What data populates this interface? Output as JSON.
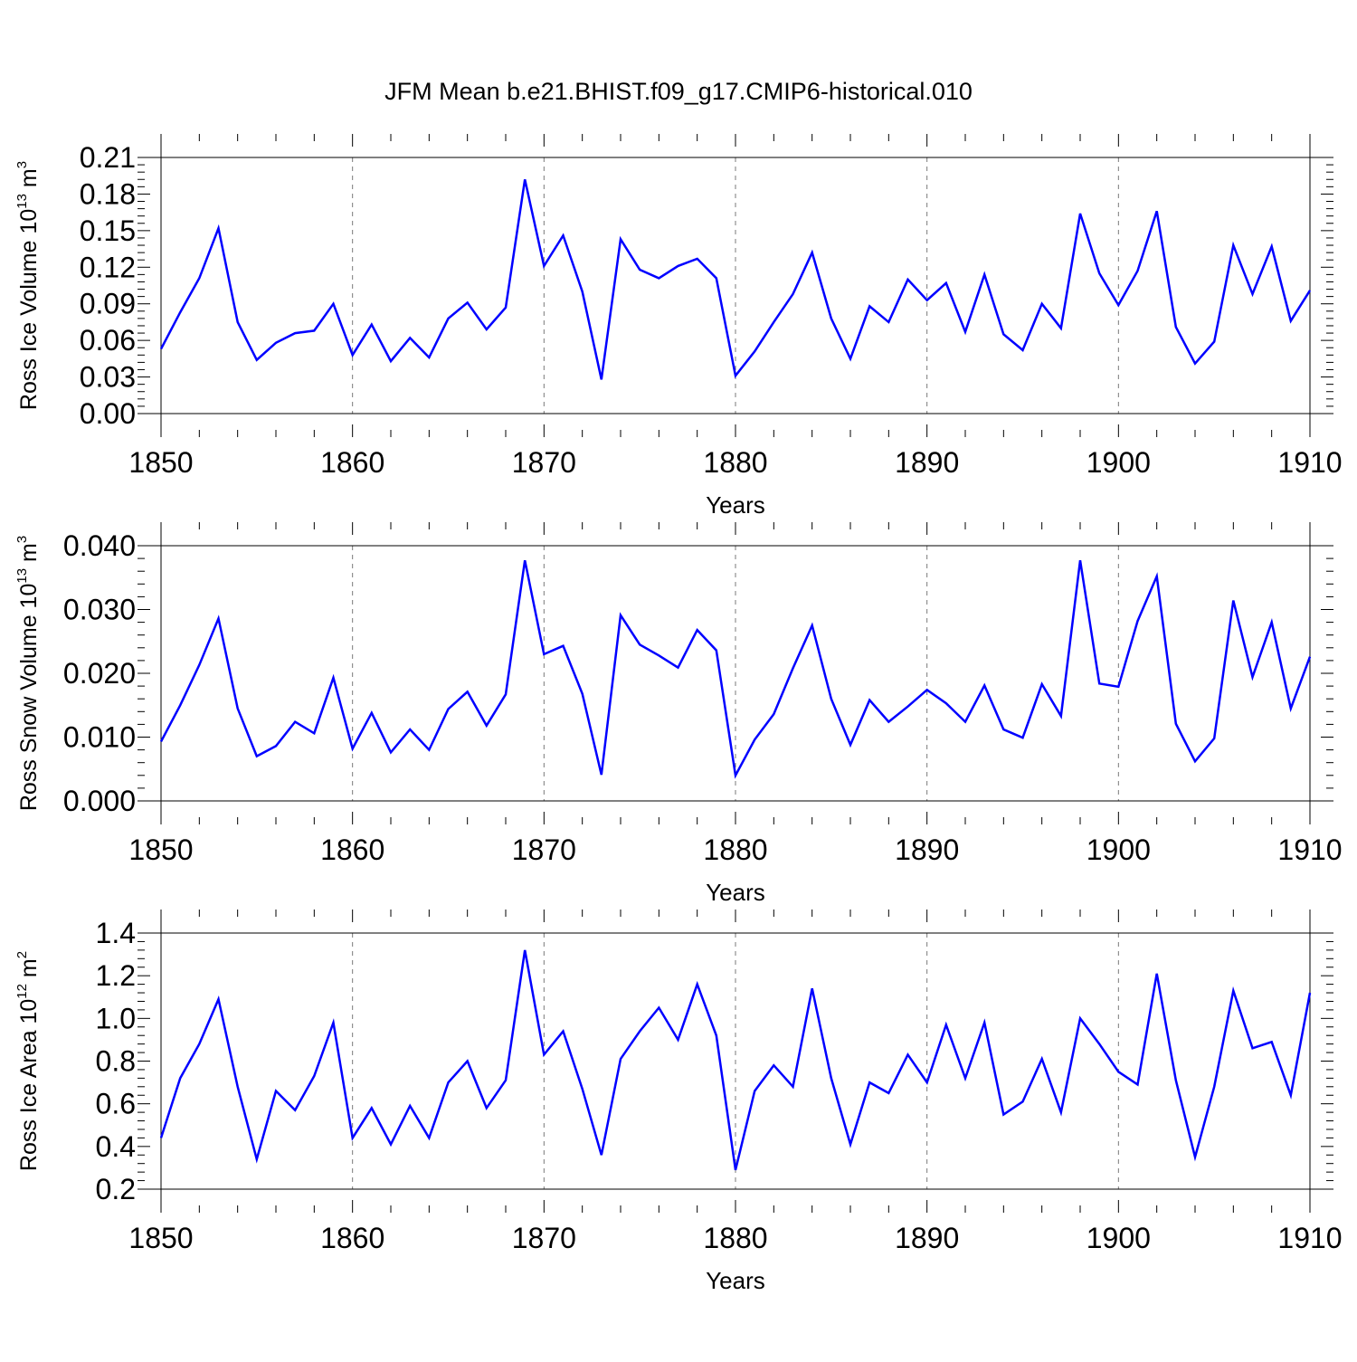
{
  "chart_data": {
    "title": "JFM Mean b.e21.BHIST.f09_g17.CMIP6-historical.010",
    "panels": [
      {
        "type": "line",
        "ylabel": {
          "text": "Ross Ice Volume 10",
          "exponent": "13",
          "unit": "m",
          "unit_exponent": "3"
        },
        "xlabel": "Years",
        "xlim": [
          1850,
          1910
        ],
        "ylim": [
          0.0,
          0.21
        ],
        "xticks": [
          "1850",
          "1860",
          "1870",
          "1880",
          "1890",
          "1900",
          "1910"
        ],
        "yticks": [
          "0.00",
          "0.03",
          "0.06",
          "0.09",
          "0.12",
          "0.15",
          "0.18",
          "0.21"
        ],
        "grid": "vertical dashed at x major ticks",
        "series": [
          {
            "name": "Ross Ice Volume",
            "color": "#0000ff",
            "x": [
              1850,
              1851,
              1852,
              1853,
              1854,
              1855,
              1856,
              1857,
              1858,
              1859,
              1860,
              1861,
              1862,
              1863,
              1864,
              1865,
              1866,
              1867,
              1868,
              1869,
              1870,
              1871,
              1872,
              1873,
              1874,
              1875,
              1876,
              1877,
              1878,
              1879,
              1880,
              1881,
              1882,
              1883,
              1884,
              1885,
              1886,
              1887,
              1888,
              1889,
              1890,
              1891,
              1892,
              1893,
              1894,
              1895,
              1896,
              1897,
              1898,
              1899,
              1900,
              1901,
              1902,
              1903,
              1904,
              1905,
              1906,
              1907,
              1908,
              1909,
              1910
            ],
            "values": [
              0.053,
              0.083,
              0.111,
              0.152,
              0.075,
              0.044,
              0.058,
              0.066,
              0.068,
              0.09,
              0.048,
              0.073,
              0.043,
              0.062,
              0.046,
              0.078,
              0.091,
              0.069,
              0.087,
              0.192,
              0.121,
              0.146,
              0.1,
              0.028,
              0.143,
              0.118,
              0.111,
              0.121,
              0.127,
              0.111,
              0.031,
              0.051,
              0.075,
              0.098,
              0.132,
              0.078,
              0.045,
              0.088,
              0.075,
              0.11,
              0.093,
              0.107,
              0.067,
              0.114,
              0.065,
              0.052,
              0.09,
              0.07,
              0.164,
              0.115,
              0.089,
              0.117,
              0.166,
              0.071,
              0.041,
              0.059,
              0.138,
              0.098,
              0.137,
              0.076,
              0.101
            ]
          }
        ]
      },
      {
        "type": "line",
        "ylabel": {
          "text": "Ross Snow Volume 10",
          "exponent": "13",
          "unit": "m",
          "unit_exponent": "3"
        },
        "xlabel": "Years",
        "xlim": [
          1850,
          1910
        ],
        "ylim": [
          0.0,
          0.04
        ],
        "xticks": [
          "1850",
          "1860",
          "1870",
          "1880",
          "1890",
          "1900",
          "1910"
        ],
        "yticks": [
          "0.000",
          "0.010",
          "0.020",
          "0.030",
          "0.040"
        ],
        "grid": "vertical dashed at x major ticks",
        "series": [
          {
            "name": "Ross Snow Volume",
            "color": "#0000ff",
            "x": [
              1850,
              1851,
              1852,
              1853,
              1854,
              1855,
              1856,
              1857,
              1858,
              1859,
              1860,
              1861,
              1862,
              1863,
              1864,
              1865,
              1866,
              1867,
              1868,
              1869,
              1870,
              1871,
              1872,
              1873,
              1874,
              1875,
              1876,
              1877,
              1878,
              1879,
              1880,
              1881,
              1882,
              1883,
              1884,
              1885,
              1886,
              1887,
              1888,
              1889,
              1890,
              1891,
              1892,
              1893,
              1894,
              1895,
              1896,
              1897,
              1898,
              1899,
              1900,
              1901,
              1902,
              1903,
              1904,
              1905,
              1906,
              1907,
              1908,
              1909,
              1910
            ],
            "values": [
              0.0093,
              0.015,
              0.0213,
              0.0286,
              0.0145,
              0.007,
              0.0086,
              0.0124,
              0.0106,
              0.0193,
              0.0082,
              0.0138,
              0.0076,
              0.0112,
              0.008,
              0.0144,
              0.0171,
              0.0118,
              0.0167,
              0.0377,
              0.023,
              0.0243,
              0.0168,
              0.0041,
              0.0291,
              0.0245,
              0.0228,
              0.0209,
              0.0268,
              0.0236,
              0.004,
              0.0096,
              0.0136,
              0.0208,
              0.0275,
              0.016,
              0.0088,
              0.0158,
              0.0124,
              0.0148,
              0.0174,
              0.0153,
              0.0124,
              0.0181,
              0.0112,
              0.0099,
              0.0183,
              0.0133,
              0.0377,
              0.0184,
              0.0179,
              0.0282,
              0.0352,
              0.0121,
              0.0062,
              0.0098,
              0.0314,
              0.0194,
              0.028,
              0.0145,
              0.0226
            ]
          }
        ]
      },
      {
        "type": "line",
        "ylabel": {
          "text": "Ross Ice Area 10",
          "exponent": "12",
          "unit": "m",
          "unit_exponent": "2"
        },
        "xlabel": "Years",
        "xlim": [
          1850,
          1910
        ],
        "ylim": [
          0.2,
          1.4
        ],
        "xticks": [
          "1850",
          "1860",
          "1870",
          "1880",
          "1890",
          "1900",
          "1910"
        ],
        "yticks": [
          "0.2",
          "0.4",
          "0.6",
          "0.8",
          "1.0",
          "1.2",
          "1.4"
        ],
        "grid": "vertical dashed at x major ticks",
        "series": [
          {
            "name": "Ross Ice Area",
            "color": "#0000ff",
            "x": [
              1850,
              1851,
              1852,
              1853,
              1854,
              1855,
              1856,
              1857,
              1858,
              1859,
              1860,
              1861,
              1862,
              1863,
              1864,
              1865,
              1866,
              1867,
              1868,
              1869,
              1870,
              1871,
              1872,
              1873,
              1874,
              1875,
              1876,
              1877,
              1878,
              1879,
              1880,
              1881,
              1882,
              1883,
              1884,
              1885,
              1886,
              1887,
              1888,
              1889,
              1890,
              1891,
              1892,
              1893,
              1894,
              1895,
              1896,
              1897,
              1898,
              1899,
              1900,
              1901,
              1902,
              1903,
              1904,
              1905,
              1906,
              1907,
              1908,
              1909,
              1910
            ],
            "values": [
              0.44,
              0.72,
              0.88,
              1.09,
              0.68,
              0.34,
              0.66,
              0.57,
              0.73,
              0.98,
              0.44,
              0.58,
              0.41,
              0.59,
              0.44,
              0.7,
              0.8,
              0.58,
              0.71,
              1.32,
              0.83,
              0.94,
              0.67,
              0.36,
              0.81,
              0.94,
              1.05,
              0.9,
              1.16,
              0.92,
              0.29,
              0.66,
              0.78,
              0.68,
              1.14,
              0.72,
              0.41,
              0.7,
              0.65,
              0.83,
              0.7,
              0.97,
              0.72,
              0.98,
              0.55,
              0.61,
              0.81,
              0.56,
              1.0,
              0.88,
              0.75,
              0.69,
              1.21,
              0.71,
              0.35,
              0.68,
              1.13,
              0.86,
              0.89,
              0.64,
              1.12
            ]
          }
        ]
      }
    ]
  }
}
